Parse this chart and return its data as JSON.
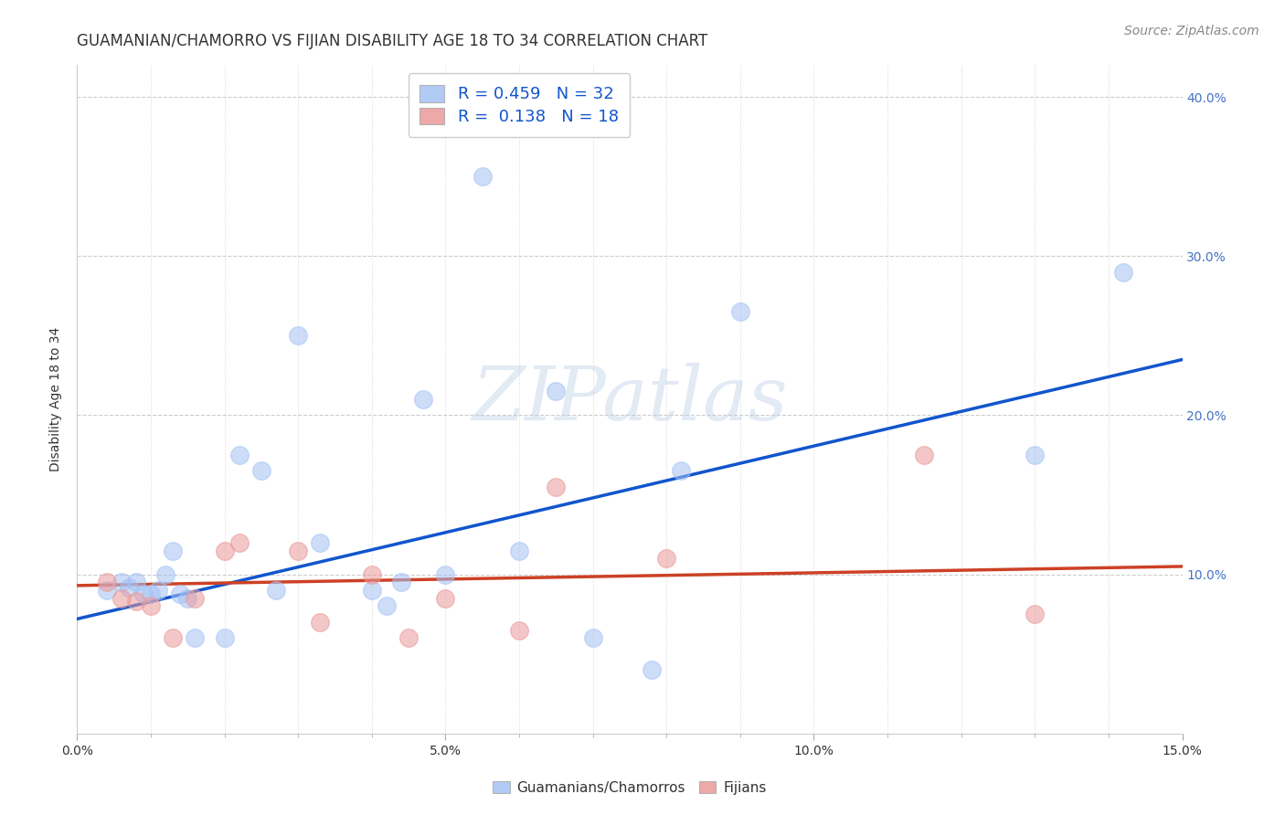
{
  "title": "GUAMANIAN/CHAMORRO VS FIJIAN DISABILITY AGE 18 TO 34 CORRELATION CHART",
  "source": "Source: ZipAtlas.com",
  "xlabel_ticks": [
    "0.0%",
    "",
    "",
    "",
    "",
    "5.0%",
    "",
    "",
    "",
    "",
    "10.0%",
    "",
    "",
    "",
    "",
    "15.0%"
  ],
  "xlabel_tick_vals": [
    0.0,
    0.01,
    0.02,
    0.03,
    0.04,
    0.05,
    0.06,
    0.07,
    0.08,
    0.09,
    0.1,
    0.11,
    0.12,
    0.13,
    0.14,
    0.15
  ],
  "xlabel_major_ticks": [
    0.0,
    0.05,
    0.1,
    0.15
  ],
  "xlabel_major_labels": [
    "0.0%",
    "5.0%",
    "10.0%",
    "15.0%"
  ],
  "ylabel": "Disability Age 18 to 34",
  "ylabel_ticks": [
    "40.0%",
    "30.0%",
    "20.0%",
    "10.0%",
    ""
  ],
  "ylabel_tick_vals": [
    0.4,
    0.3,
    0.2,
    0.1,
    0.0
  ],
  "xlim": [
    0.0,
    0.15
  ],
  "ylim": [
    0.0,
    0.42
  ],
  "blue_r": "0.459",
  "blue_n": "32",
  "pink_r": "0.138",
  "pink_n": "18",
  "blue_color": "#a4c2f4",
  "pink_color": "#ea9999",
  "blue_line_color": "#1155cc",
  "pink_line_color": "#cc4125",
  "legend_r_color": "#1155cc",
  "watermark": "ZIPatlas",
  "blue_scatter_x": [
    0.004,
    0.006,
    0.007,
    0.008,
    0.009,
    0.01,
    0.011,
    0.012,
    0.013,
    0.014,
    0.015,
    0.016,
    0.02,
    0.022,
    0.025,
    0.027,
    0.03,
    0.033,
    0.04,
    0.042,
    0.044,
    0.047,
    0.05,
    0.055,
    0.06,
    0.065,
    0.07,
    0.078,
    0.082,
    0.09,
    0.13,
    0.142
  ],
  "blue_scatter_y": [
    0.09,
    0.095,
    0.092,
    0.095,
    0.088,
    0.088,
    0.09,
    0.1,
    0.115,
    0.088,
    0.085,
    0.06,
    0.06,
    0.175,
    0.165,
    0.09,
    0.25,
    0.12,
    0.09,
    0.08,
    0.095,
    0.21,
    0.1,
    0.35,
    0.115,
    0.215,
    0.06,
    0.04,
    0.165,
    0.265,
    0.175,
    0.29
  ],
  "pink_scatter_x": [
    0.004,
    0.006,
    0.008,
    0.01,
    0.013,
    0.016,
    0.02,
    0.022,
    0.03,
    0.033,
    0.04,
    0.045,
    0.05,
    0.06,
    0.065,
    0.08,
    0.115,
    0.13
  ],
  "pink_scatter_y": [
    0.095,
    0.085,
    0.083,
    0.08,
    0.06,
    0.085,
    0.115,
    0.12,
    0.115,
    0.07,
    0.1,
    0.06,
    0.085,
    0.065,
    0.155,
    0.11,
    0.175,
    0.075
  ],
  "blue_line_x": [
    0.0,
    0.15
  ],
  "blue_line_y": [
    0.072,
    0.235
  ],
  "pink_line_x": [
    0.0,
    0.15
  ],
  "pink_line_y": [
    0.093,
    0.105
  ],
  "background_color": "#ffffff",
  "grid_color": "#cccccc",
  "title_fontsize": 12,
  "axis_label_fontsize": 10,
  "tick_fontsize": 10,
  "legend_fontsize": 13,
  "source_fontsize": 10
}
